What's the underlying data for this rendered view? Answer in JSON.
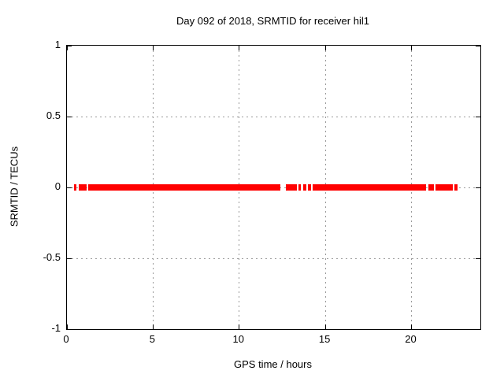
{
  "colors": {
    "background": "#ffffff",
    "axis": "#000000",
    "grid": "#9a9a9a",
    "data": "#ff0000",
    "text": "#000000"
  },
  "chart_data": {
    "type": "scatter",
    "title": "Day 092 of 2018, SRMTID for receiver hil1",
    "xlabel": "GPS time / hours",
    "ylabel": "SRMTID / TECUs",
    "xlim": [
      0,
      24
    ],
    "ylim": [
      -1,
      1
    ],
    "grid": true,
    "legend": "none",
    "xticks": [
      {
        "value": 0,
        "label": "0"
      },
      {
        "value": 5,
        "label": "5"
      },
      {
        "value": 10,
        "label": "10"
      },
      {
        "value": 15,
        "label": "15"
      },
      {
        "value": 20,
        "label": "20"
      }
    ],
    "yticks": [
      {
        "value": 1,
        "label": "1"
      },
      {
        "value": 0.5,
        "label": "0.5"
      },
      {
        "value": 0,
        "label": "0"
      },
      {
        "value": -0.5,
        "label": "-0.5"
      },
      {
        "value": -1,
        "label": "-1"
      }
    ],
    "series": [
      {
        "name": "SRMTID",
        "color": "#ff0000",
        "marker": "point-band",
        "y_value": 0,
        "segments_x_hours": [
          [
            0.41,
            0.55
          ],
          [
            0.69,
            1.14
          ],
          [
            1.23,
            12.39
          ],
          [
            12.71,
            13.35
          ],
          [
            13.44,
            13.58
          ],
          [
            13.71,
            13.9
          ],
          [
            13.99,
            14.17
          ],
          [
            14.26,
            20.85
          ],
          [
            20.98,
            21.3
          ],
          [
            21.39,
            22.4
          ],
          [
            22.49,
            22.67
          ]
        ]
      }
    ]
  }
}
